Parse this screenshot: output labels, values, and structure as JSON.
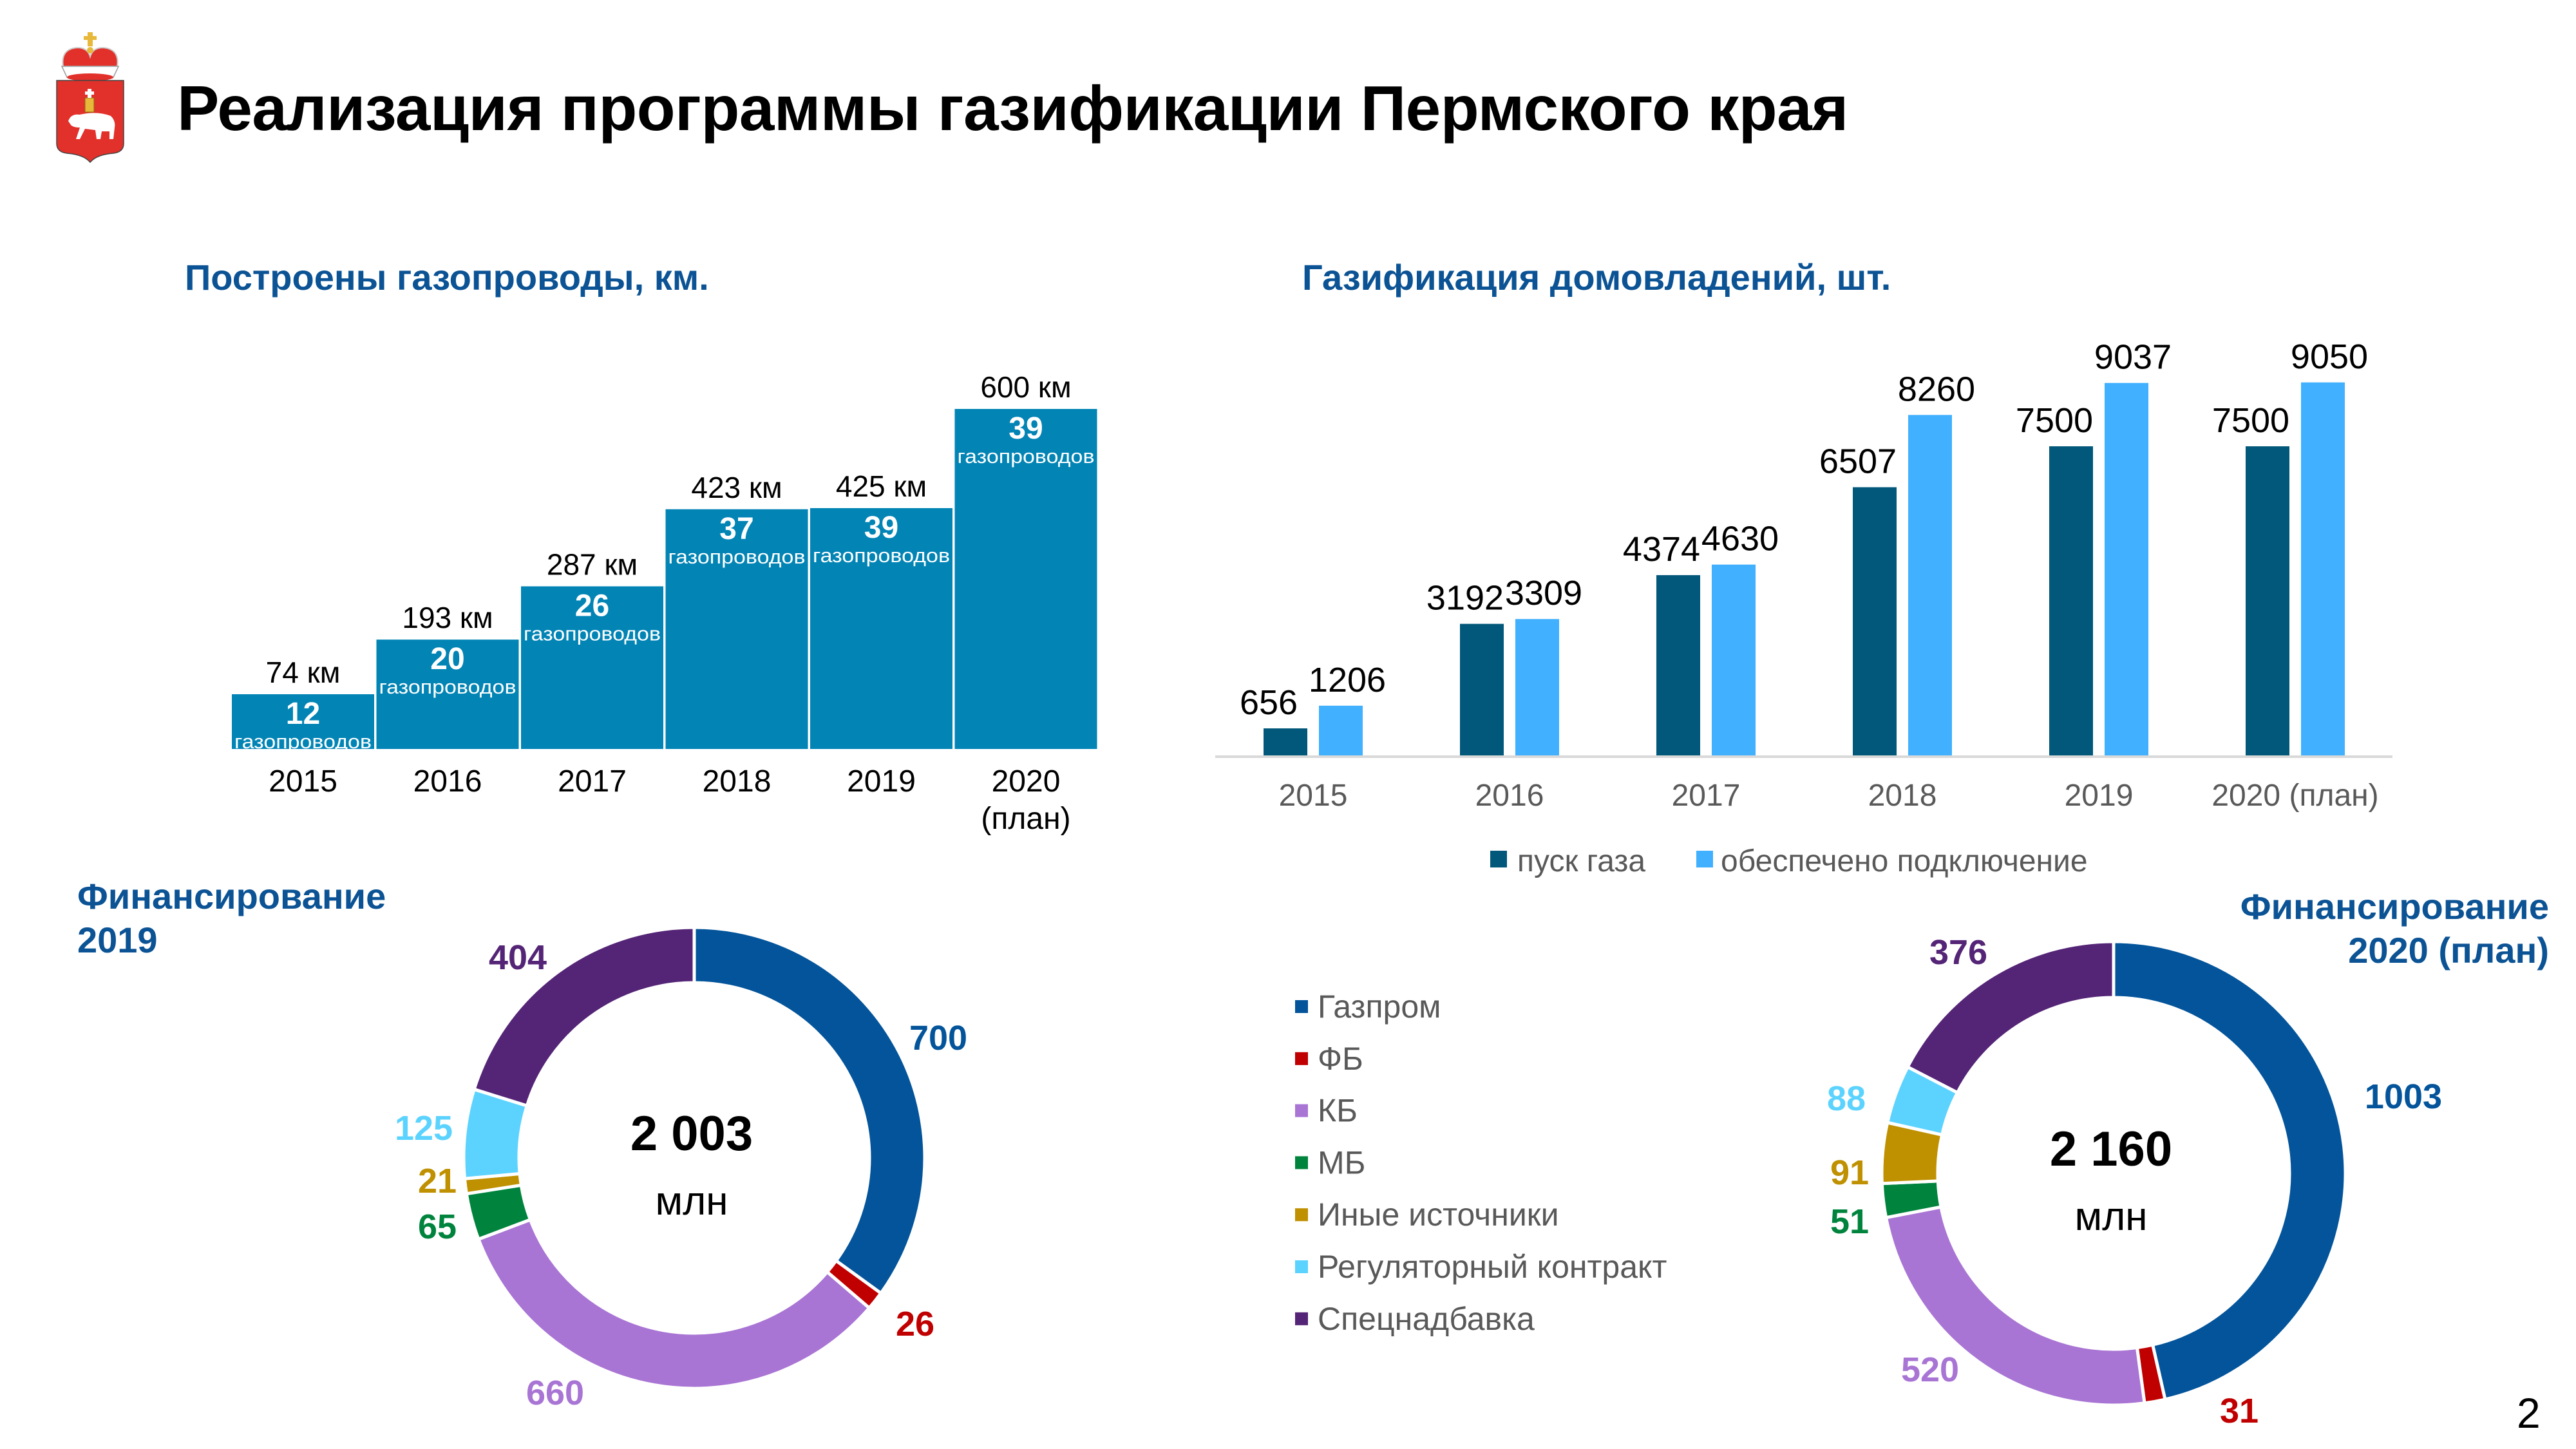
{
  "title": "Реализация программы газификации Пермского края",
  "page_number": "2",
  "logo": {
    "name": "coat-of-arms-perm-krai"
  },
  "colors": {
    "heading": "#0B5394",
    "pipeline_bar": "#0284B5",
    "gas_start": "#02587A",
    "connection": "#41B0FF",
    "axis": "#D9D9D9"
  },
  "chart_data": [
    {
      "type": "bar",
      "title": "Построены газопроводы, км.",
      "categories": [
        "2015",
        "2016",
        "2017",
        "2018",
        "2019",
        "2020"
      ],
      "category_sublabels": [
        "",
        "",
        "",
        "",
        "",
        "(план)"
      ],
      "series": [
        {
          "name": "km",
          "values": [
            74,
            193,
            287,
            423,
            425,
            600
          ],
          "labels": [
            "74 км",
            "193 км",
            "287 км",
            "423 км",
            "425 км",
            "600 км"
          ]
        }
      ],
      "pipeline_counts": [
        12,
        20,
        26,
        37,
        39,
        39
      ],
      "count_unit": "газопроводов",
      "xlabel": "",
      "ylabel": "",
      "grid": false
    },
    {
      "type": "bar",
      "title": "Газификация домовладений, шт.",
      "categories": [
        "2015",
        "2016",
        "2017",
        "2018",
        "2019",
        "2020 (план)"
      ],
      "series": [
        {
          "name": "пуск газа",
          "values": [
            656,
            3192,
            4374,
            6507,
            7500,
            7500
          ]
        },
        {
          "name": "обеспечено подключение",
          "values": [
            1206,
            3309,
            4630,
            8260,
            9037,
            9050
          ]
        }
      ],
      "legend_position": "bottom",
      "ylim": [
        0,
        10000
      ],
      "xlabel": "",
      "ylabel": "",
      "grid": false
    },
    {
      "type": "pie",
      "title": "Финансирование 2019",
      "title_lines": [
        "Финансирование",
        "2019"
      ],
      "center_value": "2 003",
      "center_unit": "млн",
      "categories": [
        "Газпром",
        "ФБ",
        "КБ",
        "МБ",
        "Иные источники",
        "Регуляторный контракт",
        "Спецнадбавка"
      ],
      "values": [
        700,
        26,
        660,
        65,
        21,
        125,
        404
      ]
    },
    {
      "type": "pie",
      "title": "Финансирование 2020 (план)",
      "title_lines": [
        "Финансирование",
        "2020 (план)"
      ],
      "center_value": "2 160",
      "center_unit": "млн",
      "categories": [
        "Газпром",
        "ФБ",
        "КБ",
        "МБ",
        "Иные источники",
        "Регуляторный контракт",
        "Спецнадбавка"
      ],
      "values": [
        1003,
        31,
        520,
        51,
        91,
        88,
        376
      ]
    }
  ],
  "funding_legend": [
    {
      "label": "Газпром",
      "color": "#03549A"
    },
    {
      "label": "ФБ",
      "color": "#C00000"
    },
    {
      "label": "КБ",
      "color": "#A975D4"
    },
    {
      "label": "МБ",
      "color": "#00843D"
    },
    {
      "label": "Иные источники",
      "color": "#BF9000"
    },
    {
      "label": "Регуляторный контракт",
      "color": "#5CD3FF"
    },
    {
      "label": "Спецнадбавка",
      "color": "#542476"
    }
  ]
}
